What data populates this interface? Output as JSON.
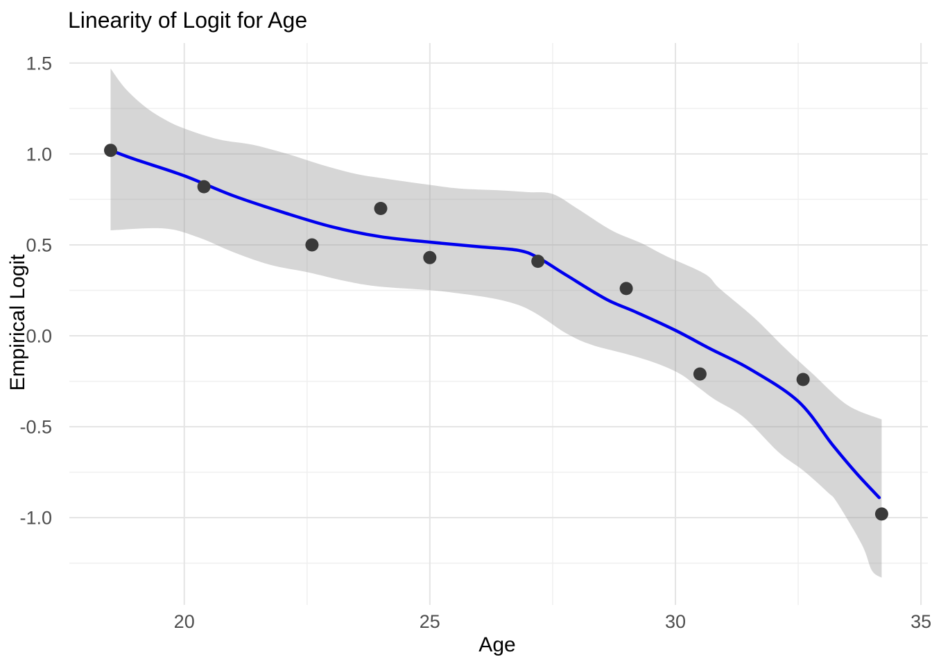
{
  "title": "Linearity of Logit for Age",
  "colors": {
    "background": "#FFFFFF",
    "smooth_line": "#0000EE",
    "ci_band": "rgba(153,153,153,0.40)",
    "point": "#3A3A3A",
    "grid_major": "#E4E4E4",
    "grid_minor": "#EFEFEF",
    "axis_text": "#4D4D4D",
    "title_text": "#000000"
  },
  "chart_data": {
    "type": "scatter",
    "title": "Linearity of Logit for Age",
    "xlabel": "Age",
    "ylabel": "Empirical Logit",
    "xlim": [
      17.66,
      35.14
    ],
    "ylim": [
      -1.48,
      1.61
    ],
    "grid": true,
    "legend": false,
    "x_ticks_major": [
      20,
      25,
      30,
      35
    ],
    "x_tick_labels": [
      "20",
      "25",
      "30",
      "35"
    ],
    "x_ticks_minor": [
      22.5,
      27.5,
      32.5
    ],
    "y_ticks_major": [
      -1.0,
      -0.5,
      0.0,
      0.5,
      1.0,
      1.5
    ],
    "y_tick_labels": [
      "-1.0",
      "-0.5",
      "0.0",
      "0.5",
      "1.0",
      "1.5"
    ],
    "y_ticks_minor": [
      -1.25,
      -0.75,
      -0.25,
      0.25,
      0.75,
      1.25
    ],
    "points": [
      [
        18.5,
        1.02
      ],
      [
        20.4,
        0.82
      ],
      [
        22.6,
        0.5
      ],
      [
        24.0,
        0.7
      ],
      [
        25.0,
        0.43
      ],
      [
        27.2,
        0.41
      ],
      [
        29.0,
        0.26
      ],
      [
        30.5,
        -0.21
      ],
      [
        32.6,
        -0.24
      ],
      [
        34.2,
        -0.98
      ]
    ],
    "smooth_line": [
      [
        18.5,
        1.02
      ],
      [
        19.0,
        0.97
      ],
      [
        20.0,
        0.88
      ],
      [
        21.0,
        0.77
      ],
      [
        22.0,
        0.68
      ],
      [
        23.0,
        0.6
      ],
      [
        24.0,
        0.545
      ],
      [
        25.0,
        0.515
      ],
      [
        26.0,
        0.49
      ],
      [
        26.8,
        0.47
      ],
      [
        27.2,
        0.43
      ],
      [
        27.8,
        0.33
      ],
      [
        28.6,
        0.2
      ],
      [
        29.2,
        0.13
      ],
      [
        30.0,
        0.03
      ],
      [
        30.7,
        -0.07
      ],
      [
        31.5,
        -0.18
      ],
      [
        32.5,
        -0.36
      ],
      [
        33.2,
        -0.6
      ],
      [
        33.7,
        -0.76
      ],
      [
        34.15,
        -0.89
      ]
    ],
    "ci_upper": [
      [
        18.5,
        1.47
      ],
      [
        18.8,
        1.36
      ],
      [
        19.2,
        1.26
      ],
      [
        19.6,
        1.19
      ],
      [
        20.0,
        1.14
      ],
      [
        20.7,
        1.08
      ],
      [
        21.4,
        1.05
      ],
      [
        22.1,
        1.0
      ],
      [
        22.8,
        0.94
      ],
      [
        23.5,
        0.89
      ],
      [
        24.2,
        0.86
      ],
      [
        25.0,
        0.83
      ],
      [
        25.6,
        0.81
      ],
      [
        26.4,
        0.8
      ],
      [
        27.0,
        0.79
      ],
      [
        27.5,
        0.78
      ],
      [
        28.0,
        0.7
      ],
      [
        28.7,
        0.58
      ],
      [
        29.3,
        0.51
      ],
      [
        29.8,
        0.44
      ],
      [
        30.6,
        0.34
      ],
      [
        30.9,
        0.26
      ],
      [
        31.6,
        0.1
      ],
      [
        32.2,
        -0.06
      ],
      [
        32.8,
        -0.21
      ],
      [
        33.5,
        -0.38
      ],
      [
        34.2,
        -0.46
      ]
    ],
    "ci_lower": [
      [
        18.5,
        0.58
      ],
      [
        19.6,
        0.59
      ],
      [
        20.3,
        0.54
      ],
      [
        21.0,
        0.46
      ],
      [
        21.75,
        0.39
      ],
      [
        22.5,
        0.35
      ],
      [
        23.3,
        0.3
      ],
      [
        24.0,
        0.27
      ],
      [
        25.4,
        0.24
      ],
      [
        26.8,
        0.17
      ],
      [
        27.8,
        0.01
      ],
      [
        28.3,
        -0.05
      ],
      [
        29.0,
        -0.1
      ],
      [
        29.6,
        -0.15
      ],
      [
        30.1,
        -0.21
      ],
      [
        30.5,
        -0.29
      ],
      [
        30.8,
        -0.35
      ],
      [
        31.4,
        -0.45
      ],
      [
        32.1,
        -0.64
      ],
      [
        32.6,
        -0.74
      ],
      [
        33.1,
        -0.86
      ],
      [
        33.3,
        -0.92
      ],
      [
        33.8,
        -1.15
      ],
      [
        34.0,
        -1.29
      ],
      [
        34.2,
        -1.33
      ]
    ]
  }
}
